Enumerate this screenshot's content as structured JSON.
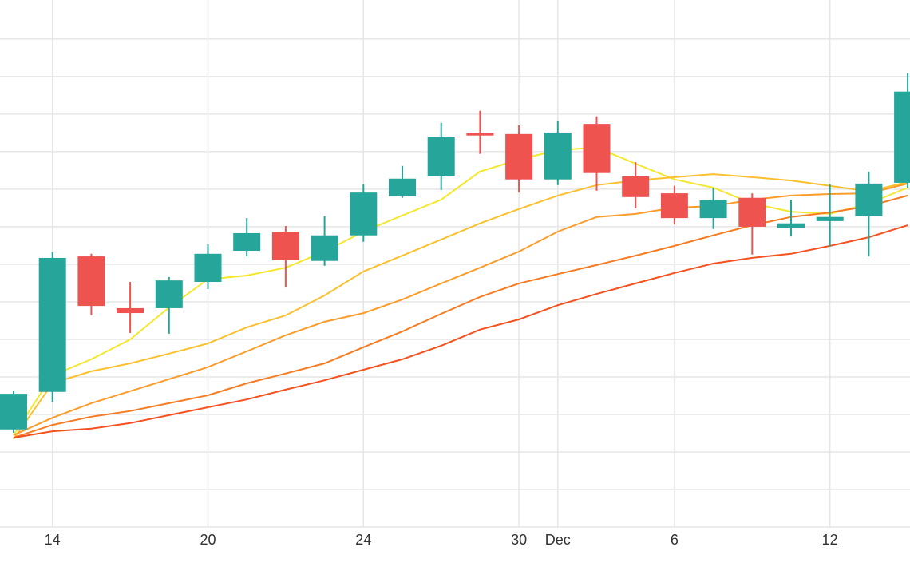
{
  "chart_data": {
    "type": "candlestick",
    "categories": [
      null,
      "14",
      null,
      null,
      null,
      "20",
      null,
      null,
      null,
      "24",
      null,
      null,
      null,
      "30",
      "Dec",
      null,
      null,
      "6",
      null,
      null,
      null,
      "12",
      null,
      null
    ],
    "open": [
      2.6,
      3.6,
      7.21,
      5.83,
      5.83,
      6.53,
      7.36,
      7.87,
      7.09,
      7.77,
      8.81,
      9.34,
      10.49,
      10.47,
      9.26,
      10.74,
      9.34,
      8.89,
      8.23,
      8.77,
      7.96,
      8.15,
      8.28,
      9.17
    ],
    "high": [
      3.62,
      7.32,
      7.28,
      6.53,
      6.66,
      7.53,
      8.23,
      8.02,
      8.28,
      9.13,
      9.62,
      10.77,
      11.09,
      10.7,
      10.81,
      10.94,
      9.72,
      9.09,
      9.04,
      8.89,
      8.72,
      9.13,
      9.47,
      12.09
    ],
    "low": [
      2.51,
      3.34,
      5.64,
      5.17,
      5.15,
      6.34,
      7.21,
      6.38,
      6.96,
      7.6,
      8.77,
      8.98,
      9.94,
      8.91,
      9.11,
      8.96,
      8.49,
      8.06,
      7.94,
      7.26,
      7.74,
      7.47,
      7.21,
      9.04
    ],
    "close": [
      3.55,
      7.17,
      5.89,
      5.7,
      6.57,
      7.28,
      7.83,
      7.11,
      7.77,
      8.91,
      9.28,
      10.4,
      10.43,
      9.26,
      10.51,
      9.43,
      8.79,
      8.23,
      8.7,
      8.0,
      8.09,
      8.26,
      9.15,
      11.6
    ],
    "up_color": "#26a69a",
    "down_color": "#ef5350",
    "overlays": [
      {
        "color": "#f5e72e",
        "values": [
          2.45,
          4.04,
          4.47,
          5.0,
          5.85,
          6.6,
          6.7,
          6.91,
          7.34,
          7.87,
          8.3,
          8.72,
          9.47,
          9.79,
          10.04,
          10.11,
          9.68,
          9.26,
          9.04,
          8.62,
          8.4,
          8.34,
          8.62,
          9.04
        ]
      },
      {
        "color": "#fbc02d",
        "values": [
          2.34,
          3.83,
          4.15,
          4.36,
          4.62,
          4.89,
          5.32,
          5.64,
          6.17,
          6.81,
          7.23,
          7.66,
          8.09,
          8.47,
          8.83,
          9.11,
          9.23,
          9.32,
          9.4,
          9.32,
          9.23,
          9.09,
          8.94,
          9.19
        ]
      },
      {
        "color": "#fb9c2a",
        "values": [
          2.45,
          2.91,
          3.3,
          3.62,
          3.94,
          4.26,
          4.68,
          5.11,
          5.47,
          5.7,
          6.06,
          6.49,
          6.91,
          7.34,
          7.87,
          8.26,
          8.34,
          8.51,
          8.55,
          8.72,
          8.83,
          8.87,
          8.89,
          9.15
        ]
      },
      {
        "color": "#f57c22",
        "values": [
          2.38,
          2.72,
          2.94,
          3.09,
          3.3,
          3.51,
          3.83,
          4.09,
          4.36,
          4.79,
          5.21,
          5.68,
          6.13,
          6.49,
          6.74,
          6.98,
          7.23,
          7.49,
          7.77,
          8.04,
          8.26,
          8.38,
          8.55,
          8.83
        ]
      },
      {
        "color": "#f4511e",
        "values": [
          2.38,
          2.55,
          2.62,
          2.77,
          2.98,
          3.19,
          3.4,
          3.66,
          3.91,
          4.19,
          4.47,
          4.83,
          5.26,
          5.53,
          5.91,
          6.21,
          6.49,
          6.77,
          7.02,
          7.17,
          7.28,
          7.49,
          7.72,
          8.04
        ]
      }
    ],
    "ylim": [
      0,
      14.04
    ],
    "yticks": [
      0,
      1,
      2,
      3,
      4,
      5,
      6,
      7,
      8,
      9,
      10,
      11,
      12,
      13
    ],
    "grid": true
  }
}
